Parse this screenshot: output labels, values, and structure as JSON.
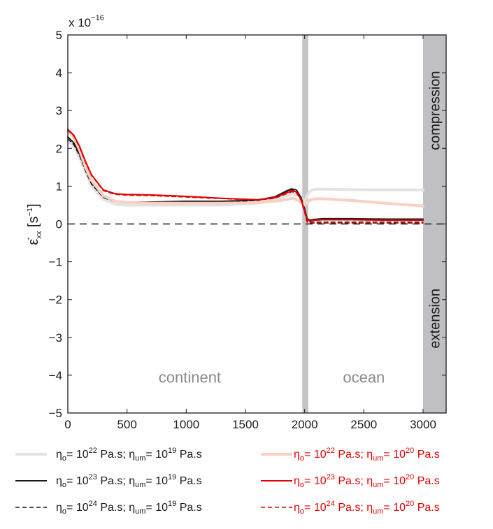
{
  "chart_data": {
    "type": "line",
    "exponent_label": {
      "base": "x 10",
      "exp": "−16"
    },
    "ylabel": {
      "symbol": "ε̇",
      "sub": "xx",
      "unit_pre": " [s",
      "unit_exp": "−1",
      "unit_post": "]"
    },
    "xlim": [
      0,
      3000
    ],
    "ylim": [
      -5,
      5
    ],
    "x_ticks": [
      0,
      500,
      1000,
      1500,
      2000,
      2500,
      3000
    ],
    "x_tick_labels": [
      "0",
      "500",
      "1000",
      "1500",
      "2000",
      "2500",
      "3000"
    ],
    "y_ticks": [
      -5,
      -4,
      -3,
      -2,
      -1,
      0,
      1,
      2,
      3,
      4,
      5
    ],
    "y_tick_labels": [
      "−5",
      "−4",
      "−3",
      "−2",
      "−1",
      "0",
      "1",
      "2",
      "3",
      "4",
      "5"
    ],
    "grid": false,
    "annotations": {
      "continent": "continent",
      "ocean": "ocean",
      "compression": "compression",
      "extension": "extension"
    },
    "margin_band_x": [
      1980,
      2030
    ],
    "side_band_x": [
      3000,
      3150
    ],
    "zero_line": 0,
    "series": [
      {
        "legend": {
          "pre": "η",
          "sub1": "o",
          "mid1": "= 10",
          "sup1": "22",
          "mid2": " Pa.s; η",
          "sub2": "um",
          "mid3": "= 10",
          "sup2": "19",
          "post": " Pa.s"
        },
        "color": "#e3e3e3",
        "dash": "none",
        "width": 4,
        "x": [
          0,
          50,
          100,
          150,
          200,
          300,
          400,
          500,
          700,
          1000,
          1300,
          1600,
          1800,
          1900,
          1950,
          2000,
          2030,
          2060,
          2100,
          2200,
          2400,
          2600,
          2800,
          3000
        ],
        "y": [
          2.2,
          2.05,
          1.75,
          1.35,
          1.0,
          0.65,
          0.52,
          0.5,
          0.5,
          0.5,
          0.5,
          0.55,
          0.7,
          0.8,
          0.75,
          0.6,
          0.8,
          0.9,
          0.92,
          0.92,
          0.91,
          0.9,
          0.9,
          0.9
        ]
      },
      {
        "legend": {
          "pre": "η",
          "sub1": "o",
          "mid1": "= 10",
          "sup1": "23",
          "mid2": " Pa.s; η",
          "sub2": "um",
          "mid3": "= 10",
          "sup2": "19",
          "post": " Pa.s"
        },
        "color": "#1a1a1a",
        "dash": "none",
        "width": 2,
        "x": [
          0,
          50,
          100,
          150,
          200,
          300,
          400,
          500,
          700,
          1000,
          1300,
          1600,
          1750,
          1850,
          1890,
          1930,
          1970,
          2000,
          2020,
          2040,
          2080,
          2150,
          2400,
          2700,
          3000
        ],
        "y": [
          2.3,
          2.15,
          1.85,
          1.45,
          1.1,
          0.72,
          0.6,
          0.58,
          0.58,
          0.6,
          0.6,
          0.63,
          0.72,
          0.88,
          0.93,
          0.9,
          0.7,
          0.4,
          0.15,
          0.1,
          0.12,
          0.14,
          0.14,
          0.13,
          0.13
        ]
      },
      {
        "legend": {
          "pre": "η",
          "sub1": "o",
          "mid1": "= 10",
          "sup1": "24",
          "mid2": " Pa.s; η",
          "sub2": "um",
          "mid3": "= 10",
          "sup2": "19",
          "post": " Pa.s"
        },
        "color": "#1a1a1a",
        "dash": "6,4",
        "width": 1.5,
        "x": [
          0,
          50,
          100,
          150,
          200,
          300,
          400,
          500,
          700,
          1000,
          1300,
          1600,
          1750,
          1850,
          1890,
          1930,
          1970,
          2000,
          2020,
          2040,
          2100,
          2400,
          2700,
          3000
        ],
        "y": [
          2.25,
          2.1,
          1.8,
          1.4,
          1.05,
          0.7,
          0.58,
          0.56,
          0.56,
          0.58,
          0.58,
          0.62,
          0.7,
          0.85,
          0.9,
          0.87,
          0.68,
          0.35,
          0.08,
          0.05,
          0.05,
          0.05,
          0.05,
          0.05
        ]
      },
      {
        "legend": {
          "pre": "η",
          "sub1": "o",
          "mid1": "= 10",
          "sup1": "22",
          "mid2": " Pa.s; η",
          "sub2": "um",
          "mid3": "= 10",
          "sup2": "20",
          "post": " Pa.s"
        },
        "color": "#f8d0c4",
        "dash": "none",
        "width": 4,
        "x": [
          0,
          50,
          100,
          150,
          200,
          300,
          400,
          500,
          700,
          1000,
          1300,
          1600,
          1800,
          1900,
          1950,
          2000,
          2030,
          2060,
          2100,
          2200,
          2400,
          2600,
          2800,
          3000
        ],
        "y": [
          2.45,
          2.3,
          1.95,
          1.5,
          1.15,
          0.75,
          0.6,
          0.57,
          0.55,
          0.55,
          0.55,
          0.56,
          0.62,
          0.68,
          0.62,
          0.5,
          0.6,
          0.65,
          0.67,
          0.66,
          0.62,
          0.57,
          0.52,
          0.48
        ]
      },
      {
        "legend": {
          "pre": "η",
          "sub1": "o",
          "mid1": "= 10",
          "sup1": "23",
          "mid2": " Pa.s; η",
          "sub2": "um",
          "mid3": "= 10",
          "sup2": "20",
          "post": " Pa.s"
        },
        "color": "#e00000",
        "dash": "none",
        "width": 2,
        "x": [
          0,
          50,
          100,
          150,
          200,
          300,
          400,
          500,
          700,
          1000,
          1300,
          1600,
          1750,
          1850,
          1890,
          1930,
          1970,
          2000,
          2020,
          2040,
          2080,
          2150,
          2400,
          2700,
          3000
        ],
        "y": [
          2.5,
          2.35,
          2.05,
          1.65,
          1.3,
          0.9,
          0.8,
          0.78,
          0.77,
          0.73,
          0.68,
          0.64,
          0.7,
          0.83,
          0.88,
          0.85,
          0.65,
          0.35,
          0.12,
          0.08,
          0.1,
          0.11,
          0.11,
          0.1,
          0.1
        ]
      },
      {
        "legend": {
          "pre": "η",
          "sub1": "o",
          "mid1": "= 10",
          "sup1": "24",
          "mid2": " Pa.s; η",
          "sub2": "um",
          "mid3": "= 10",
          "sup2": "20",
          "post": " Pa.s"
        },
        "color": "#e00000",
        "dash": "6,4",
        "width": 1.5,
        "x": [
          0,
          50,
          100,
          150,
          200,
          300,
          400,
          500,
          700,
          1000,
          1300,
          1600,
          1750,
          1850,
          1890,
          1930,
          1970,
          2000,
          2020,
          2040,
          2100,
          2400,
          2700,
          3000
        ],
        "y": [
          2.48,
          2.33,
          2.02,
          1.62,
          1.28,
          0.88,
          0.78,
          0.76,
          0.75,
          0.71,
          0.67,
          0.63,
          0.68,
          0.8,
          0.85,
          0.82,
          0.62,
          0.3,
          0.05,
          0.02,
          0.02,
          0.02,
          0.02,
          0.02
        ]
      }
    ]
  }
}
